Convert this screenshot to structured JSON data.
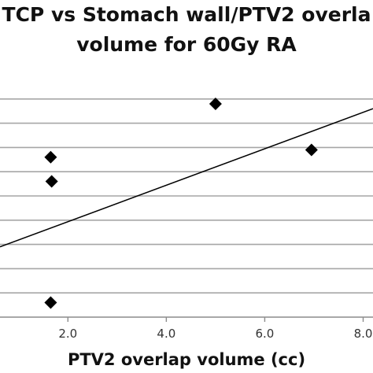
{
  "chart_data": {
    "type": "scatter",
    "title": "TCP vs Stomach wall/PTV2 overla",
    "subtitle": "volume for 60Gy RA",
    "xlabel": "PTV2 overlap volume (cc)",
    "ylabel": "",
    "xlim": [
      0.62,
      8.2
    ],
    "ylim": [
      0,
      10
    ],
    "x_ticks": [
      {
        "value": 2.0,
        "label": "2.0"
      },
      {
        "value": 4.0,
        "label": "4.0"
      },
      {
        "value": 6.0,
        "label": "6.0"
      },
      {
        "value": 8.0,
        "label": "8.0"
      }
    ],
    "y_gridlines": [
      0,
      1,
      2,
      3,
      4,
      5,
      6,
      7,
      8,
      9
    ],
    "grid": true,
    "legend": "none",
    "series": [
      {
        "points": [
          {
            "x": 1.65,
            "y": 6.6
          },
          {
            "x": 1.67,
            "y": 5.6
          },
          {
            "x": 1.65,
            "y": 0.6
          },
          {
            "x": 5.0,
            "y": 8.8
          },
          {
            "x": 6.95,
            "y": 6.9
          }
        ]
      }
    ],
    "trendline": {
      "type": "linear",
      "x": [
        0.62,
        8.2
      ],
      "y": [
        2.9,
        8.6
      ]
    },
    "colors": {
      "marker": "#000000",
      "trendline": "#000000",
      "grid": "#a6a6a6",
      "axis": "#8c8c8c"
    }
  }
}
